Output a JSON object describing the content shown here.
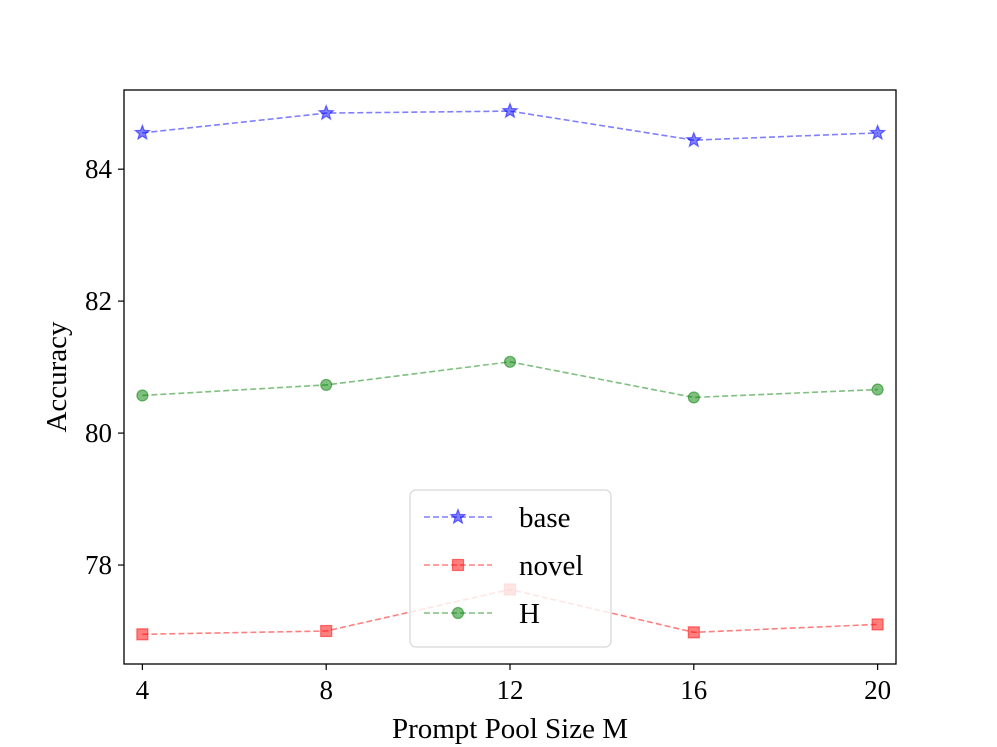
{
  "chart_data": {
    "type": "line",
    "x": [
      4,
      8,
      12,
      16,
      20
    ],
    "xlabel": "Prompt Pool Size M",
    "ylabel": "Accuracy",
    "xlim": [
      3.6,
      20.4
    ],
    "ylim": [
      76.5,
      85.2
    ],
    "xticks": [
      "4",
      "8",
      "12",
      "16",
      "20"
    ],
    "yticks": [
      "78",
      "80",
      "82",
      "84"
    ],
    "grid": false,
    "legend_position": "lower-center",
    "series": [
      {
        "name": "base",
        "values": [
          84.55,
          84.85,
          84.88,
          84.44,
          84.55
        ],
        "color": "#0000ff",
        "marker": "star"
      },
      {
        "name": "novel",
        "values": [
          76.95,
          77.0,
          77.63,
          76.98,
          77.1
        ],
        "color": "#ff0000",
        "marker": "square"
      },
      {
        "name": "H",
        "values": [
          80.57,
          80.73,
          81.08,
          80.54,
          80.66
        ],
        "color": "#008000",
        "marker": "circle"
      }
    ]
  }
}
